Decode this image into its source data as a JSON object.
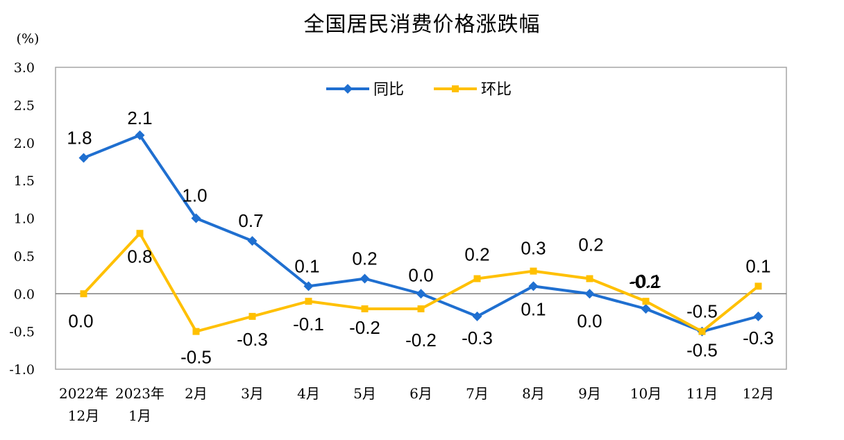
{
  "chart_data": {
    "type": "line",
    "title": "全国居民消费价格涨跌幅",
    "unit_label": "(%)",
    "ylim": [
      -1.0,
      3.0
    ],
    "y_ticks": [
      "3.0",
      "2.5",
      "2.0",
      "1.5",
      "1.0",
      "0.5",
      "0.0",
      "-0.5",
      "-1.0"
    ],
    "categories": [
      [
        "2022年",
        "12月"
      ],
      [
        "2023年",
        "1月"
      ],
      [
        "2月"
      ],
      [
        "3月"
      ],
      [
        "4月"
      ],
      [
        "5月"
      ],
      [
        "6月"
      ],
      [
        "7月"
      ],
      [
        "8月"
      ],
      [
        "9月"
      ],
      [
        "10月"
      ],
      [
        "11月"
      ],
      [
        "12月"
      ]
    ],
    "legend_position": "top-center",
    "grid": false,
    "series": [
      {
        "name": "同比",
        "color": "#1F6FD0",
        "marker": "diamond",
        "values": [
          1.8,
          2.1,
          1.0,
          0.7,
          0.1,
          0.2,
          0.0,
          -0.3,
          0.1,
          0.0,
          -0.2,
          -0.5,
          -0.3
        ],
        "labels": [
          "1.8",
          "2.1",
          "1.0",
          "0.7",
          "0.1",
          "0.2",
          "0.0",
          "-0.3",
          "0.1",
          "0.0",
          "-0.2",
          "-0.5",
          "-0.3"
        ]
      },
      {
        "name": "环比",
        "color": "#FFC000",
        "marker": "square",
        "values": [
          0.0,
          0.8,
          -0.5,
          -0.3,
          -0.1,
          -0.2,
          -0.2,
          0.2,
          0.3,
          0.2,
          -0.1,
          -0.5,
          0.1
        ],
        "labels": [
          "0.0",
          "0.8",
          "-0.5",
          "-0.3",
          "-0.1",
          "-0.2",
          "-0.2",
          "0.2",
          "0.3",
          "0.2",
          "-0.1",
          "-0.5",
          "0.1"
        ]
      }
    ]
  }
}
